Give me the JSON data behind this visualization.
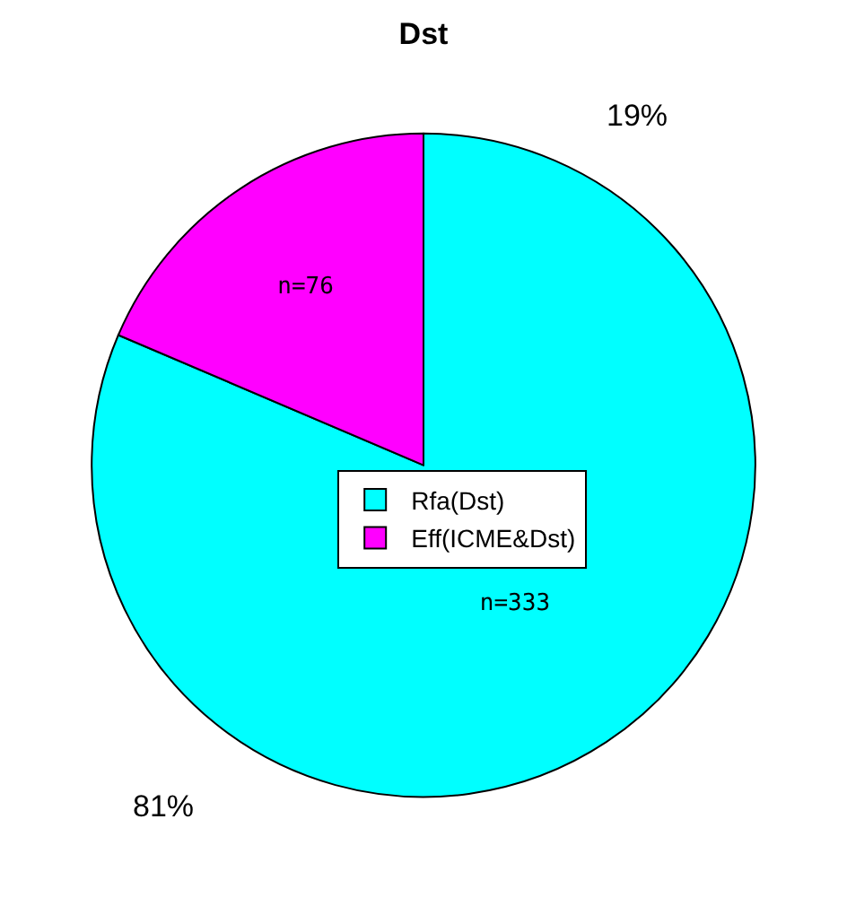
{
  "chart_data": {
    "type": "pie",
    "title": "Dst",
    "categories": [
      "Rfa(Dst)",
      "Eff(ICME&Dst)"
    ],
    "values": [
      333,
      76
    ],
    "value_labels": [
      "n=333",
      "n=76"
    ],
    "colors": [
      "#00ffff",
      "#ff00ff"
    ],
    "annotations": [
      "81%",
      "19%"
    ],
    "legend": "center"
  }
}
